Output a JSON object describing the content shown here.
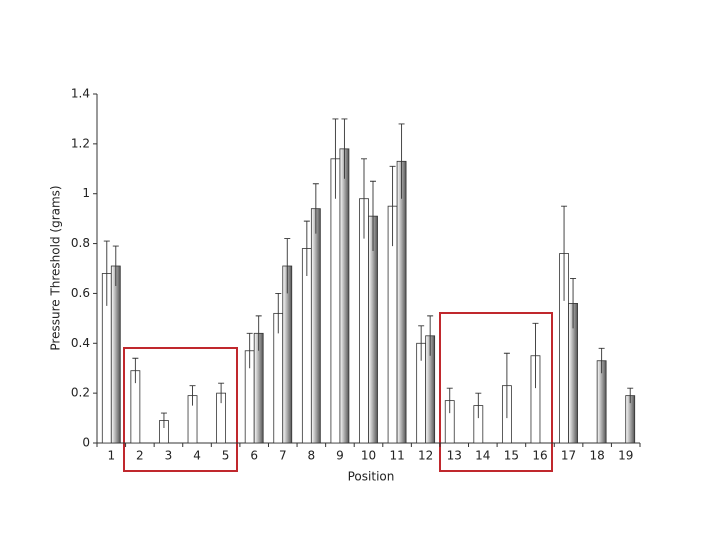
{
  "chart_data": {
    "type": "bar",
    "x_label": "Position",
    "y_label": "Pressure Threshold (grams)",
    "categories": [
      "1",
      "2",
      "3",
      "4",
      "5",
      "6",
      "7",
      "8",
      "9",
      "10",
      "11",
      "12",
      "13",
      "14",
      "15",
      "16",
      "17",
      "18",
      "19"
    ],
    "series": [
      {
        "color": "#ffffff",
        "values": [
          0.68,
          0.29,
          0.09,
          0.19,
          0.2,
          0.37,
          0.52,
          0.78,
          1.14,
          0.98,
          0.95,
          0.4,
          0.17,
          0.15,
          0.23,
          0.35,
          0.76,
          null,
          null
        ],
        "errors": [
          0.13,
          0.05,
          0.03,
          0.04,
          0.04,
          0.07,
          0.08,
          0.11,
          0.16,
          0.16,
          0.16,
          0.07,
          0.05,
          0.05,
          0.13,
          0.13,
          0.19,
          null,
          null
        ]
      },
      {
        "color": "#555555",
        "values": [
          0.71,
          null,
          null,
          null,
          null,
          0.44,
          0.71,
          0.94,
          1.18,
          0.91,
          1.13,
          0.43,
          null,
          null,
          null,
          null,
          0.56,
          0.33,
          0.19
        ],
        "errors": [
          0.08,
          null,
          null,
          null,
          null,
          0.07,
          0.11,
          0.1,
          0.12,
          0.14,
          0.15,
          0.08,
          null,
          null,
          null,
          null,
          0.1,
          0.05,
          0.03
        ]
      }
    ],
    "ylim": [
      0,
      1.4
    ],
    "yticks": [
      0,
      0.2,
      0.4,
      0.6,
      0.8,
      1,
      1.2,
      1.4
    ],
    "grid": false
  }
}
